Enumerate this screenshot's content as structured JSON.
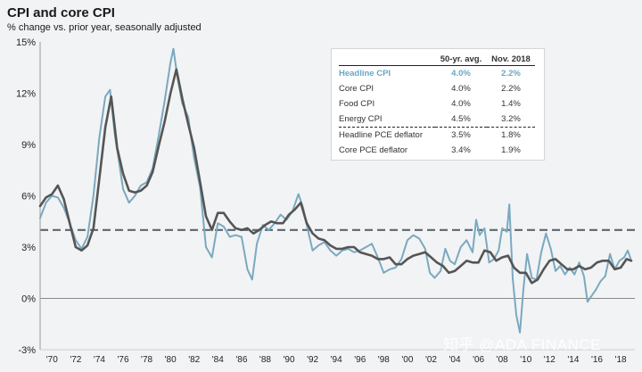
{
  "chart_data": {
    "type": "line",
    "title": "CPI and core CPI",
    "subtitle": "% change vs. prior year, seasonally adjusted",
    "ylim": [
      -3,
      15
    ],
    "xlim": [
      1969.0,
      2019.2
    ],
    "y_ticks": [
      "-3%",
      "0%",
      "3%",
      "6%",
      "9%",
      "12%",
      "15%"
    ],
    "y_tick_values": [
      -3,
      0,
      3,
      6,
      9,
      12,
      15
    ],
    "x_ticks": [
      "'70",
      "'72",
      "'74",
      "'76",
      "'78",
      "'80",
      "'82",
      "'84",
      "'86",
      "'88",
      "'90",
      "'92",
      "'94",
      "'96",
      "'98",
      "'00",
      "'02",
      "'04",
      "'06",
      "'08",
      "'10",
      "'12",
      "'14",
      "'16",
      "'18"
    ],
    "x_tick_values": [
      1970,
      1972,
      1974,
      1976,
      1978,
      1980,
      1982,
      1984,
      1986,
      1988,
      1990,
      1992,
      1994,
      1996,
      1998,
      2000,
      2002,
      2004,
      2006,
      2008,
      2010,
      2012,
      2014,
      2016,
      2018
    ],
    "reference_line": {
      "value": 4.0,
      "style": "dashed"
    },
    "colors": {
      "headline": "#7aa9c0",
      "core": "#555555",
      "reference": "#5b6670",
      "zero_line": "#888888"
    },
    "series": [
      {
        "key": "headline",
        "x": [
          1969.0,
          1969.5,
          1970.0,
          1970.5,
          1971.0,
          1971.5,
          1972.0,
          1972.5,
          1973.0,
          1973.5,
          1974.0,
          1974.5,
          1974.9,
          1975.3,
          1975.7,
          1976.0,
          1976.5,
          1977.0,
          1977.5,
          1978.0,
          1978.5,
          1979.0,
          1979.5,
          1980.0,
          1980.25,
          1980.6,
          1981.0,
          1981.5,
          1982.0,
          1982.5,
          1983.0,
          1983.5,
          1984.0,
          1984.5,
          1985.0,
          1985.5,
          1986.0,
          1986.5,
          1986.9,
          1987.3,
          1987.8,
          1988.3,
          1988.8,
          1989.3,
          1989.8,
          1990.3,
          1990.8,
          1991.2,
          1991.6,
          1992.0,
          1992.5,
          1993.0,
          1993.5,
          1994.0,
          1994.5,
          1995.0,
          1995.5,
          1996.0,
          1996.5,
          1997.0,
          1997.5,
          1998.0,
          1998.5,
          1999.0,
          1999.5,
          2000.0,
          2000.5,
          2001.0,
          2001.5,
          2001.9,
          2002.3,
          2002.8,
          2003.2,
          2003.6,
          2004.0,
          2004.5,
          2005.0,
          2005.5,
          2005.8,
          2006.1,
          2006.5,
          2006.9,
          2007.3,
          2007.7,
          2008.0,
          2008.4,
          2008.6,
          2008.9,
          2009.2,
          2009.5,
          2009.8,
          2010.1,
          2010.5,
          2010.9,
          2011.3,
          2011.7,
          2012.1,
          2012.5,
          2012.9,
          2013.3,
          2013.7,
          2014.1,
          2014.5,
          2014.9,
          2015.2,
          2015.5,
          2015.9,
          2016.3,
          2016.7,
          2017.1,
          2017.5,
          2017.9,
          2018.3,
          2018.6,
          2018.9
        ],
        "y": [
          4.7,
          5.6,
          6.0,
          5.9,
          5.3,
          4.4,
          3.4,
          2.9,
          3.6,
          6.0,
          9.4,
          11.8,
          12.2,
          9.6,
          7.8,
          6.4,
          5.6,
          6.0,
          6.6,
          6.8,
          7.6,
          9.5,
          11.5,
          13.8,
          14.6,
          12.9,
          11.4,
          10.6,
          8.2,
          6.5,
          3.0,
          2.4,
          4.4,
          4.2,
          3.6,
          3.7,
          3.6,
          1.7,
          1.1,
          3.2,
          4.3,
          4.0,
          4.4,
          4.9,
          4.6,
          5.1,
          6.1,
          5.3,
          4.0,
          2.8,
          3.1,
          3.3,
          2.8,
          2.5,
          2.8,
          2.9,
          2.7,
          2.8,
          3.0,
          3.2,
          2.4,
          1.5,
          1.7,
          1.8,
          2.3,
          3.4,
          3.7,
          3.5,
          2.9,
          1.5,
          1.2,
          1.6,
          2.9,
          2.2,
          2.0,
          3.0,
          3.4,
          2.7,
          4.6,
          3.7,
          4.1,
          2.1,
          2.3,
          2.8,
          4.1,
          3.9,
          5.5,
          1.1,
          -1.0,
          -2.0,
          0.6,
          2.6,
          1.2,
          1.1,
          2.7,
          3.8,
          2.9,
          1.6,
          1.9,
          1.4,
          1.8,
          1.4,
          2.1,
          1.3,
          -0.2,
          0.1,
          0.5,
          1.0,
          1.3,
          2.6,
          1.7,
          2.2,
          2.4,
          2.8,
          2.2
        ]
      },
      {
        "key": "core",
        "x": [
          1969.0,
          1969.5,
          1970.0,
          1970.5,
          1971.0,
          1971.5,
          1972.0,
          1972.5,
          1973.0,
          1973.5,
          1974.0,
          1974.5,
          1975.0,
          1975.5,
          1976.0,
          1976.5,
          1977.0,
          1977.5,
          1978.0,
          1978.5,
          1979.0,
          1979.5,
          1980.0,
          1980.5,
          1981.0,
          1981.5,
          1982.0,
          1982.5,
          1983.0,
          1983.5,
          1984.0,
          1984.5,
          1985.0,
          1985.5,
          1986.0,
          1986.5,
          1987.0,
          1987.5,
          1988.0,
          1988.5,
          1989.0,
          1989.5,
          1990.0,
          1990.5,
          1991.0,
          1991.5,
          1992.0,
          1992.5,
          1993.0,
          1993.5,
          1994.0,
          1994.5,
          1995.0,
          1995.5,
          1996.0,
          1996.5,
          1997.0,
          1997.5,
          1998.0,
          1998.5,
          1999.0,
          1999.5,
          2000.0,
          2000.5,
          2001.0,
          2001.5,
          2002.0,
          2002.5,
          2003.0,
          2003.5,
          2004.0,
          2004.5,
          2005.0,
          2005.5,
          2006.0,
          2006.5,
          2007.0,
          2007.5,
          2008.0,
          2008.5,
          2009.0,
          2009.5,
          2010.0,
          2010.5,
          2011.0,
          2011.5,
          2012.0,
          2012.5,
          2013.0,
          2013.5,
          2014.0,
          2014.5,
          2015.0,
          2015.5,
          2016.0,
          2016.5,
          2017.0,
          2017.5,
          2018.0,
          2018.5,
          2018.9
        ],
        "y": [
          5.4,
          5.9,
          6.1,
          6.6,
          5.8,
          4.4,
          3.0,
          2.8,
          3.1,
          4.1,
          7.0,
          10.0,
          11.8,
          8.8,
          7.3,
          6.3,
          6.2,
          6.3,
          6.6,
          7.4,
          8.9,
          10.3,
          12.0,
          13.4,
          11.7,
          10.2,
          8.8,
          6.8,
          4.8,
          4.0,
          5.0,
          5.0,
          4.5,
          4.1,
          4.0,
          4.1,
          3.8,
          4.0,
          4.3,
          4.5,
          4.4,
          4.4,
          4.9,
          5.2,
          5.6,
          4.4,
          3.8,
          3.5,
          3.4,
          3.1,
          2.9,
          2.9,
          3.0,
          3.0,
          2.7,
          2.6,
          2.5,
          2.3,
          2.3,
          2.4,
          2.0,
          2.0,
          2.3,
          2.5,
          2.6,
          2.7,
          2.4,
          2.1,
          1.9,
          1.5,
          1.6,
          1.9,
          2.2,
          2.1,
          2.1,
          2.8,
          2.7,
          2.2,
          2.4,
          2.5,
          1.8,
          1.5,
          1.5,
          0.9,
          1.1,
          1.7,
          2.2,
          2.3,
          2.0,
          1.7,
          1.7,
          1.9,
          1.7,
          1.8,
          2.1,
          2.2,
          2.2,
          1.7,
          1.8,
          2.3,
          2.2
        ]
      }
    ],
    "table": {
      "columns": [
        "",
        "50-yr. avg.",
        "Nov. 2018"
      ],
      "rows": [
        {
          "label": "Headline CPI",
          "avg": "4.0%",
          "latest": "2.2%",
          "highlight": true
        },
        {
          "label": "Core CPI",
          "avg": "4.0%",
          "latest": "2.2%"
        },
        {
          "label": "Food CPI",
          "avg": "4.0%",
          "latest": "1.4%"
        },
        {
          "label": "Energy CPI",
          "avg": "4.5%",
          "latest": "3.2%",
          "separator_after": true
        },
        {
          "label": "Headline PCE deflator",
          "avg": "3.5%",
          "latest": "1.8%"
        },
        {
          "label": "Core PCE deflator",
          "avg": "3.4%",
          "latest": "1.9%"
        }
      ]
    }
  },
  "watermark": "知乎 @ADA FINANCE"
}
